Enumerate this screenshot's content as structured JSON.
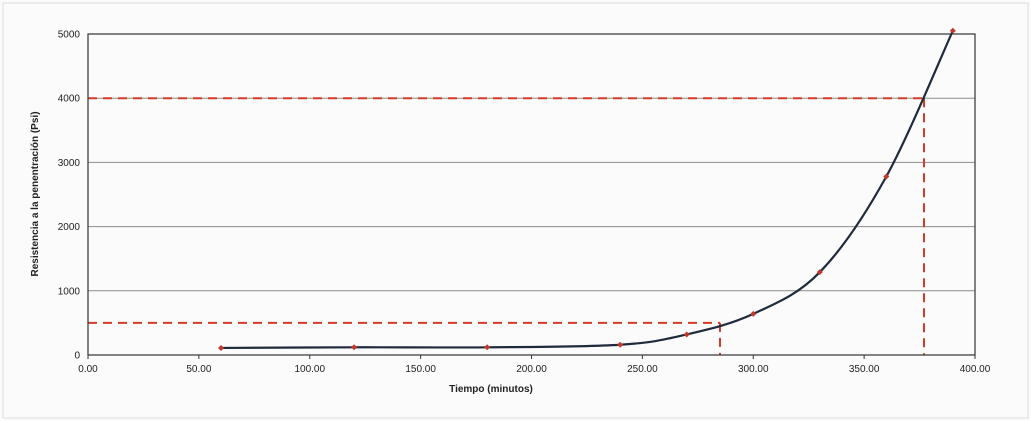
{
  "chart_data": {
    "type": "line",
    "title": "",
    "xlabel": "Tiempo (minutos)",
    "ylabel": "Resistencia a la penentración (Psi)",
    "xlim": [
      0,
      400
    ],
    "ylim": [
      0,
      5000
    ],
    "x_ticks": [
      "0.00",
      "50.00",
      "100.00",
      "150.00",
      "200.00",
      "250.00",
      "300.00",
      "350.00",
      "400.00"
    ],
    "x_tick_values": [
      0,
      50,
      100,
      150,
      200,
      250,
      300,
      350,
      400
    ],
    "y_ticks": [
      "0",
      "1000",
      "2000",
      "3000",
      "4000",
      "5000"
    ],
    "y_tick_values": [
      0,
      1000,
      2000,
      3000,
      4000,
      5000
    ],
    "grid": "horizontal",
    "legend": "none",
    "series": [
      {
        "x": [
          60,
          120,
          180,
          240,
          270,
          300,
          330,
          360,
          390
        ],
        "y": [
          110,
          120,
          120,
          160,
          320,
          640,
          1290,
          2780,
          5050
        ]
      }
    ],
    "reference_lines": [
      {
        "y": 500,
        "x": 285
      },
      {
        "y": 4000,
        "x": 377
      }
    ],
    "colors": {
      "curve": "#1f2a3c",
      "points": "#c0392b",
      "reference": "#d63b2a",
      "grid": "#8c8c8c"
    }
  }
}
